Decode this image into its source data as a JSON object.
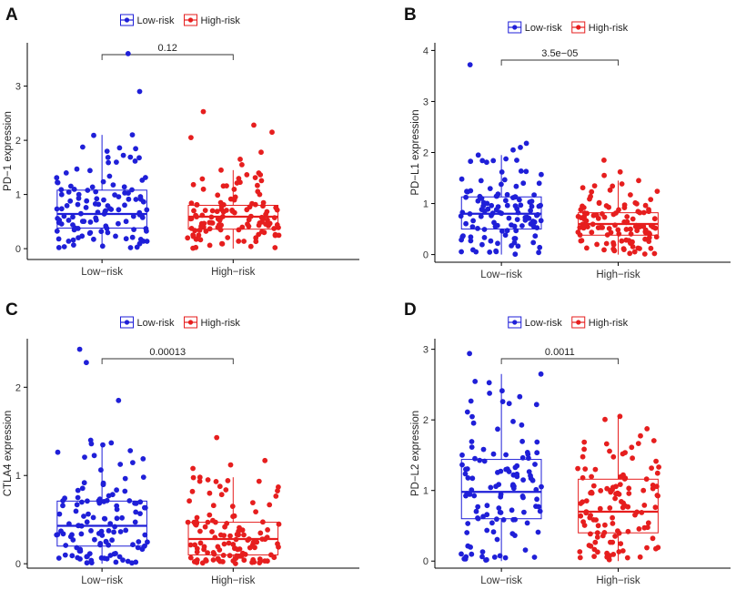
{
  "colors": {
    "low": "#1f1fd8",
    "high": "#e61e1e"
  },
  "legend": {
    "low_label": "Low-risk",
    "high_label": "High-risk"
  },
  "chart_data": [
    {
      "type": "box",
      "panel": "A",
      "categories": [
        "Low−risk",
        "High−risk"
      ],
      "ylabel": "PD−1 expression",
      "ylim": [
        -0.2,
        3.8
      ],
      "yticks": [
        0,
        1,
        2,
        3
      ],
      "pvalue": "0.12",
      "series": [
        {
          "name": "Low-risk",
          "q1": 0.38,
          "median": 0.64,
          "q3": 1.08,
          "whisker_low": 0.0,
          "whisker_high": 2.1,
          "outliers": [
            2.9,
            3.6
          ]
        },
        {
          "name": "High-risk",
          "q1": 0.36,
          "median": 0.59,
          "q3": 0.8,
          "whisker_low": 0.0,
          "whisker_high": 1.45,
          "outliers": [
            1.55,
            1.65,
            1.78,
            2.05,
            2.15,
            2.28,
            2.53
          ]
        }
      ]
    },
    {
      "type": "box",
      "panel": "B",
      "categories": [
        "Low−risk",
        "High−risk"
      ],
      "ylabel": "PD−L1 expression",
      "ylim": [
        -0.15,
        4.15
      ],
      "yticks": [
        0,
        1,
        2,
        3,
        4
      ],
      "pvalue": "3.5e−05",
      "series": [
        {
          "name": "Low-risk",
          "q1": 0.5,
          "median": 0.8,
          "q3": 1.13,
          "whisker_low": 0.0,
          "whisker_high": 1.95,
          "outliers": [
            2.05,
            2.1,
            2.18,
            3.72
          ]
        },
        {
          "name": "High-risk",
          "q1": 0.38,
          "median": 0.6,
          "q3": 0.82,
          "whisker_low": 0.0,
          "whisker_high": 1.45,
          "outliers": [
            1.55,
            1.62,
            1.85
          ]
        }
      ]
    },
    {
      "type": "box",
      "panel": "C",
      "categories": [
        "Low−risk",
        "High−risk"
      ],
      "ylabel": "CTLA4 expression",
      "ylim": [
        -0.05,
        2.55
      ],
      "yticks": [
        0,
        1,
        2
      ],
      "pvalue": "0.00013",
      "series": [
        {
          "name": "Low-risk",
          "q1": 0.2,
          "median": 0.43,
          "q3": 0.71,
          "whisker_low": 0.0,
          "whisker_high": 1.37,
          "outliers": [
            1.4,
            1.85,
            2.28,
            2.43
          ]
        },
        {
          "name": "High-risk",
          "q1": 0.1,
          "median": 0.28,
          "q3": 0.47,
          "whisker_low": 0.0,
          "whisker_high": 0.98,
          "outliers": [
            1.08,
            1.12,
            1.17,
            1.43
          ]
        }
      ]
    },
    {
      "type": "box",
      "panel": "D",
      "categories": [
        "Low−risk",
        "High−risk"
      ],
      "ylabel": "PD−L2 expression",
      "ylim": [
        -0.1,
        3.15
      ],
      "yticks": [
        0,
        1,
        2,
        3
      ],
      "pvalue": "0.0011",
      "series": [
        {
          "name": "Low-risk",
          "q1": 0.6,
          "median": 0.98,
          "q3": 1.44,
          "whisker_low": 0.0,
          "whisker_high": 2.65,
          "outliers": [
            2.94
          ]
        },
        {
          "name": "High-risk",
          "q1": 0.4,
          "median": 0.7,
          "q3": 1.16,
          "whisker_low": 0.0,
          "whisker_high": 2.05,
          "outliers": []
        }
      ]
    }
  ]
}
